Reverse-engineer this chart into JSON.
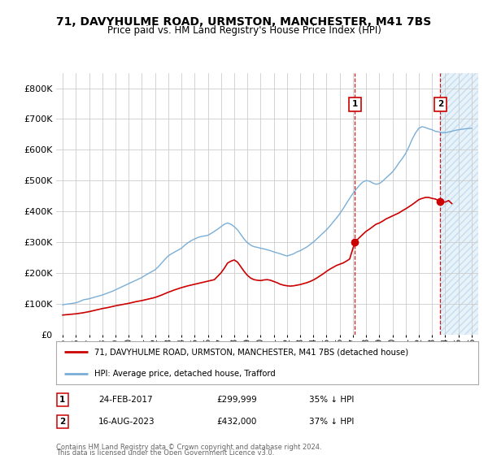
{
  "title": "71, DAVYHULME ROAD, URMSTON, MANCHESTER, M41 7BS",
  "subtitle": "Price paid vs. HM Land Registry's House Price Index (HPI)",
  "ylim": [
    0,
    850000
  ],
  "yticks": [
    0,
    100000,
    200000,
    300000,
    400000,
    500000,
    600000,
    700000,
    800000
  ],
  "ytick_labels": [
    "£0",
    "£100K",
    "£200K",
    "£300K",
    "£400K",
    "£500K",
    "£600K",
    "£700K",
    "£800K"
  ],
  "years": [
    1995,
    1996,
    1997,
    1998,
    1999,
    2000,
    2001,
    2002,
    2003,
    2004,
    2005,
    2006,
    2007,
    2008,
    2009,
    2010,
    2011,
    2012,
    2013,
    2014,
    2015,
    2016,
    2017,
    2018,
    2019,
    2020,
    2021,
    2022,
    2023,
    2024,
    2025,
    2026
  ],
  "hpi_x": [
    1995.0,
    1995.08,
    1995.17,
    1995.25,
    1995.33,
    1995.42,
    1995.5,
    1995.58,
    1995.67,
    1995.75,
    1995.83,
    1995.92,
    1996.0,
    1996.08,
    1996.17,
    1996.25,
    1996.33,
    1996.42,
    1996.5,
    1996.58,
    1996.67,
    1996.75,
    1996.83,
    1996.92,
    1997.0,
    1997.25,
    1997.5,
    1997.75,
    1998.0,
    1998.25,
    1998.5,
    1998.75,
    1999.0,
    1999.25,
    1999.5,
    1999.75,
    2000.0,
    2000.25,
    2000.5,
    2000.75,
    2001.0,
    2001.25,
    2001.5,
    2001.75,
    2002.0,
    2002.25,
    2002.5,
    2002.75,
    2003.0,
    2003.25,
    2003.5,
    2003.75,
    2004.0,
    2004.25,
    2004.5,
    2004.75,
    2005.0,
    2005.25,
    2005.5,
    2005.75,
    2006.0,
    2006.25,
    2006.5,
    2006.75,
    2007.0,
    2007.25,
    2007.5,
    2007.75,
    2008.0,
    2008.25,
    2008.5,
    2008.75,
    2009.0,
    2009.25,
    2009.5,
    2009.75,
    2010.0,
    2010.25,
    2010.5,
    2010.75,
    2011.0,
    2011.25,
    2011.5,
    2011.75,
    2012.0,
    2012.25,
    2012.5,
    2012.75,
    2013.0,
    2013.25,
    2013.5,
    2013.75,
    2014.0,
    2014.25,
    2014.5,
    2014.75,
    2015.0,
    2015.25,
    2015.5,
    2015.75,
    2016.0,
    2016.25,
    2016.5,
    2016.75,
    2017.0,
    2017.25,
    2017.5,
    2017.75,
    2018.0,
    2018.25,
    2018.5,
    2018.75,
    2019.0,
    2019.25,
    2019.5,
    2019.75,
    2020.0,
    2020.25,
    2020.5,
    2020.75,
    2021.0,
    2021.25,
    2021.5,
    2021.75,
    2022.0,
    2022.25,
    2022.5,
    2022.75,
    2023.0,
    2023.25,
    2023.5,
    2023.75,
    2024.0,
    2024.25,
    2024.5,
    2024.75,
    2025.0,
    2025.5,
    2026.0
  ],
  "hpi_y": [
    96000,
    97000,
    97500,
    98000,
    98500,
    99000,
    99500,
    100000,
    100500,
    101000,
    101500,
    102000,
    103000,
    104000,
    105000,
    106500,
    108000,
    109500,
    111000,
    112500,
    113500,
    114000,
    114500,
    115000,
    116000,
    119000,
    122000,
    125000,
    128000,
    132000,
    136000,
    140000,
    145000,
    150000,
    155000,
    160000,
    165000,
    170000,
    175000,
    180000,
    185000,
    192000,
    198000,
    204000,
    210000,
    220000,
    232000,
    244000,
    255000,
    262000,
    268000,
    274000,
    280000,
    290000,
    298000,
    305000,
    310000,
    315000,
    318000,
    320000,
    322000,
    328000,
    335000,
    342000,
    350000,
    358000,
    362000,
    358000,
    350000,
    340000,
    325000,
    310000,
    298000,
    290000,
    285000,
    283000,
    280000,
    278000,
    275000,
    272000,
    268000,
    265000,
    262000,
    258000,
    255000,
    258000,
    262000,
    268000,
    272000,
    278000,
    284000,
    292000,
    300000,
    310000,
    320000,
    330000,
    340000,
    352000,
    365000,
    378000,
    392000,
    408000,
    425000,
    442000,
    458000,
    472000,
    485000,
    495000,
    500000,
    498000,
    492000,
    488000,
    490000,
    498000,
    508000,
    518000,
    528000,
    542000,
    558000,
    572000,
    588000,
    610000,
    635000,
    655000,
    670000,
    675000,
    672000,
    668000,
    665000,
    660000,
    658000,
    656000,
    655000,
    658000,
    660000,
    663000,
    665000,
    668000,
    670000
  ],
  "red_x": [
    1995.0,
    1995.5,
    1996.0,
    1996.5,
    1997.0,
    1997.5,
    1998.0,
    1998.5,
    1999.0,
    1999.5,
    2000.0,
    2000.5,
    2001.0,
    2001.5,
    2002.0,
    2002.5,
    2003.0,
    2003.5,
    2004.0,
    2004.5,
    2005.0,
    2005.5,
    2006.0,
    2006.5,
    2007.0,
    2007.25,
    2007.5,
    2007.75,
    2008.0,
    2008.25,
    2008.5,
    2008.75,
    2009.0,
    2009.25,
    2009.5,
    2009.75,
    2010.0,
    2010.25,
    2010.5,
    2010.75,
    2011.0,
    2011.25,
    2011.5,
    2011.75,
    2012.0,
    2012.25,
    2012.5,
    2012.75,
    2013.0,
    2013.25,
    2013.5,
    2013.75,
    2014.0,
    2014.25,
    2014.5,
    2014.75,
    2015.0,
    2015.25,
    2015.5,
    2015.75,
    2016.0,
    2016.25,
    2016.5,
    2016.75,
    2017.15,
    2017.5,
    2017.75,
    2018.0,
    2018.25,
    2018.5,
    2018.75,
    2019.0,
    2019.25,
    2019.5,
    2019.75,
    2020.0,
    2020.25,
    2020.5,
    2020.75,
    2021.0,
    2021.25,
    2021.5,
    2021.75,
    2022.0,
    2022.25,
    2022.5,
    2022.75,
    2023.0,
    2023.25,
    2023.62,
    2024.0,
    2024.25,
    2024.5
  ],
  "red_y": [
    63000,
    65000,
    67000,
    70000,
    74000,
    79000,
    84000,
    88000,
    93000,
    97000,
    101000,
    106000,
    110000,
    115000,
    120000,
    128000,
    137000,
    145000,
    152000,
    158000,
    163000,
    168000,
    173000,
    178000,
    200000,
    215000,
    232000,
    238000,
    242000,
    235000,
    220000,
    205000,
    192000,
    183000,
    178000,
    176000,
    175000,
    177000,
    178000,
    176000,
    172000,
    168000,
    163000,
    160000,
    158000,
    157000,
    158000,
    160000,
    162000,
    165000,
    168000,
    172000,
    177000,
    183000,
    190000,
    197000,
    205000,
    212000,
    218000,
    224000,
    228000,
    232000,
    238000,
    245000,
    299999,
    315000,
    325000,
    335000,
    342000,
    350000,
    358000,
    362000,
    368000,
    375000,
    380000,
    385000,
    390000,
    395000,
    402000,
    408000,
    415000,
    422000,
    430000,
    438000,
    442000,
    445000,
    445000,
    442000,
    440000,
    432000,
    430000,
    435000,
    425000
  ],
  "sold_dates": [
    2017.15,
    2023.62
  ],
  "sold_prices": [
    299999,
    432000
  ],
  "sold_color": "#cc0000",
  "hpi_line_color": "#7aaed6",
  "hatch_fill_color": "#d6e8f5",
  "hatch_start_x": 2023.62,
  "xlim_min": 1994.5,
  "xlim_max": 2026.5,
  "transaction1": {
    "num": "1",
    "date": "24-FEB-2017",
    "price": "£299,999",
    "hpi_diff": "35% ↓ HPI"
  },
  "transaction2": {
    "num": "2",
    "date": "16-AUG-2023",
    "price": "£432,000",
    "hpi_diff": "37% ↓ HPI"
  },
  "legend_line1": "71, DAVYHULME ROAD, URMSTON, MANCHESTER, M41 7BS (detached house)",
  "legend_line2": "HPI: Average price, detached house, Trafford",
  "footer1": "Contains HM Land Registry data © Crown copyright and database right 2024.",
  "footer2": "This data is licensed under the Open Government Licence v3.0.",
  "background_color": "#ffffff",
  "grid_color": "#cccccc"
}
